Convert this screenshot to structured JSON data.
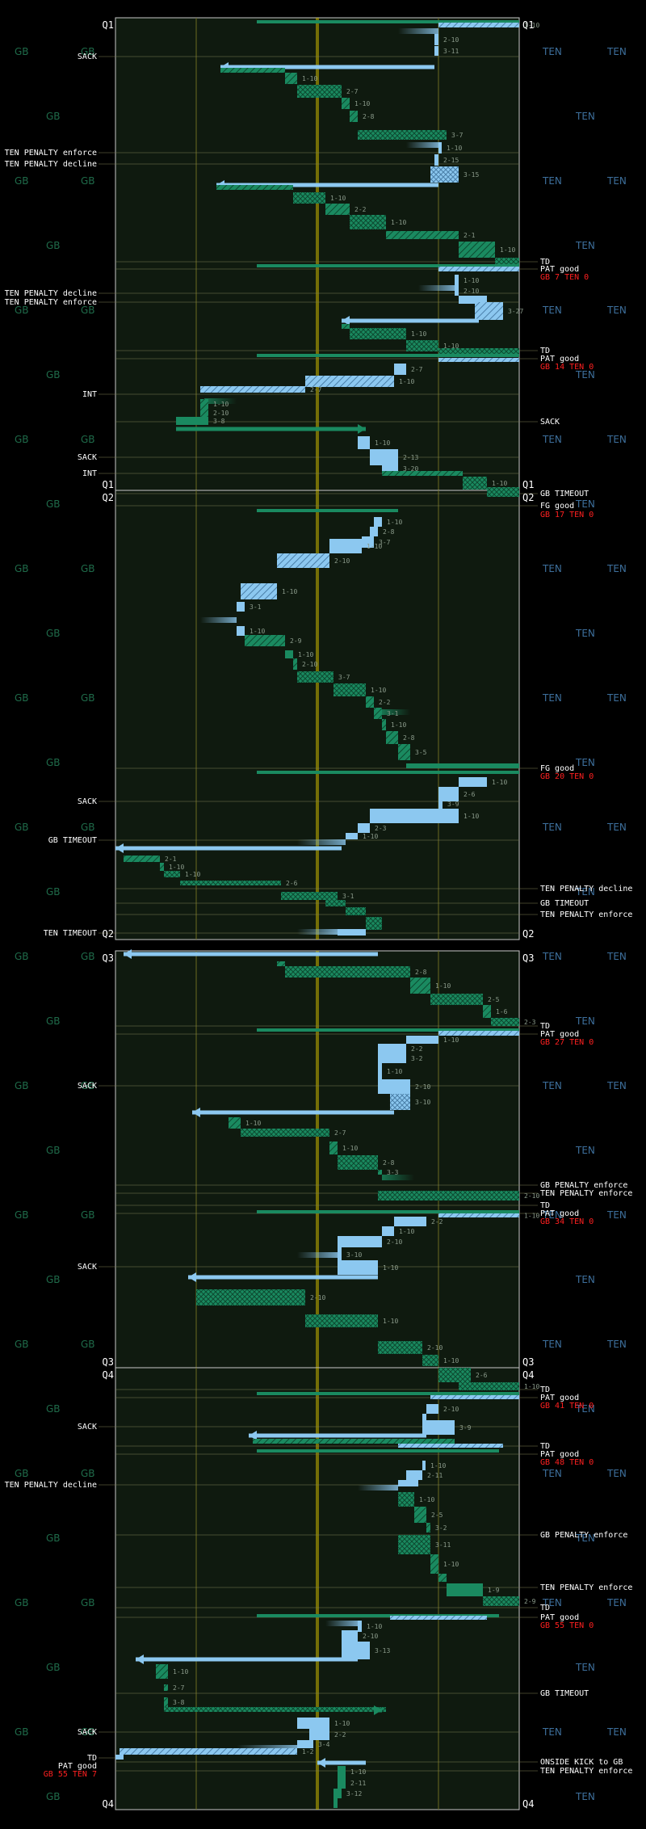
{
  "colors": {
    "background": "#000000",
    "field": "#0f1a0f",
    "gb": "#1a8a60",
    "gb_dark": "#0d5a3c",
    "ten": "#8cc8f0",
    "ten_dark": "#4a7fa8",
    "midline": "#c8b400",
    "yardline": "#6b6b20",
    "score": "#ff2020",
    "wm_gb": "#1f6b4a",
    "wm_ten": "#3d6f9c"
  },
  "chart_data": {
    "type": "drive-chart",
    "x_axis": "field position (yards)",
    "watermarks": {
      "home": "TEN",
      "away": "GB"
    },
    "quarters": [
      {
        "label": "Q1",
        "events_left": [
          "SACK",
          "TEN PENALTY enforce",
          "TEN PENALTY decline",
          "TEN PENALTY decline",
          "TEN PENALTY enforce",
          "INT",
          "SACK",
          "INT"
        ],
        "events_right": [
          "TD",
          "PAT good",
          "TD",
          "PAT good",
          "SACK",
          "GB TIMEOUT"
        ],
        "scores": [
          "GB 7 TEN 0",
          "GB 14 TEN 0"
        ],
        "downs": [
          "1-10",
          "2-10",
          "3-11",
          "1-10",
          "2-7",
          "1-10",
          "2-8",
          "3-7",
          "1-10",
          "2-15",
          "3-15",
          "1-10",
          "2-2",
          "1-10",
          "2-1",
          "1-10",
          "1-10",
          "2-10",
          "3-27",
          "1-10",
          "1-10",
          "2-7",
          "1-10",
          "2-7",
          "1-10",
          "2-10",
          "3-8",
          "1-10",
          "2-13",
          "3-20",
          "1-10"
        ]
      },
      {
        "label": "Q2",
        "events_left": [
          "SACK",
          "GB TIMEOUT",
          "TEN TIMEOUT"
        ],
        "events_right": [
          "FG good",
          "FG good",
          "TEN PENALTY decline",
          "GB TIMEOUT",
          "TEN PENALTY enforce"
        ],
        "scores": [
          "GB 17 TEN 0",
          "GB 20 TEN 0"
        ],
        "downs": [
          "1-10",
          "2-8",
          "3-7",
          "1-10",
          "2-10",
          "1-10",
          "3-1",
          "1-10",
          "2-9",
          "1-10",
          "2-10",
          "3-7",
          "1-10",
          "2-2",
          "3-1",
          "1-10",
          "2-8",
          "3-5",
          "1-10",
          "2-6",
          "3-9",
          "1-10",
          "2-3",
          "1-10",
          "2-1",
          "1-10",
          "1-10",
          "2-6",
          "3-1"
        ]
      },
      {
        "label": "Q3",
        "events_left": [
          "SACK",
          "SACK"
        ],
        "events_right": [
          "TD",
          "PAT good",
          "GB PENALTY enforce",
          "TEN PENALTY enforce",
          "TD",
          "PAT good"
        ],
        "scores": [
          "GB 27 TEN 0",
          "GB 34 TEN 0"
        ],
        "downs": [
          "1-10",
          "2-8",
          "1-10",
          "2-5",
          "1-6",
          "2-3",
          "1-10",
          "2-2",
          "3-2",
          "1-10",
          "2-10",
          "3-10",
          "1-10",
          "2-7",
          "1-10",
          "2-8",
          "3-3",
          "2-10",
          "1-10",
          "2-2",
          "1-10",
          "2-10",
          "3-10",
          "1-10",
          "2-10",
          "1-10",
          "2-10",
          "1-10"
        ]
      },
      {
        "label": "Q4",
        "events_left": [
          "SACK",
          "TEN PENALTY decline",
          "SACK",
          "TD",
          "PAT good"
        ],
        "events_right": [
          "TD",
          "PAT good",
          "TD",
          "PAT good",
          "GB PENALTY enforce",
          "TEN PENALTY enforce",
          "TD",
          "PAT good",
          "GB TIMEOUT",
          "ONSIDE KICK to GB",
          "TEN PENALTY enforce"
        ],
        "scores": [
          "GB 41 TEN 0",
          "GB 48 TEN 0",
          "GB 55 TEN 0",
          "GB 55 TEN 7"
        ],
        "downs": [
          "2-6",
          "1-10",
          "2-10",
          "3-9",
          "1-10",
          "2-11",
          "1-10",
          "2-5",
          "3-2",
          "3-11",
          "1-10",
          "1-9",
          "2-9",
          "1-10",
          "2-10",
          "3-13",
          "1-10",
          "2-7",
          "3-8",
          "1-10",
          "2-2",
          "3-4",
          "1-2",
          "1-10",
          "2-11",
          "3-12"
        ]
      }
    ]
  }
}
